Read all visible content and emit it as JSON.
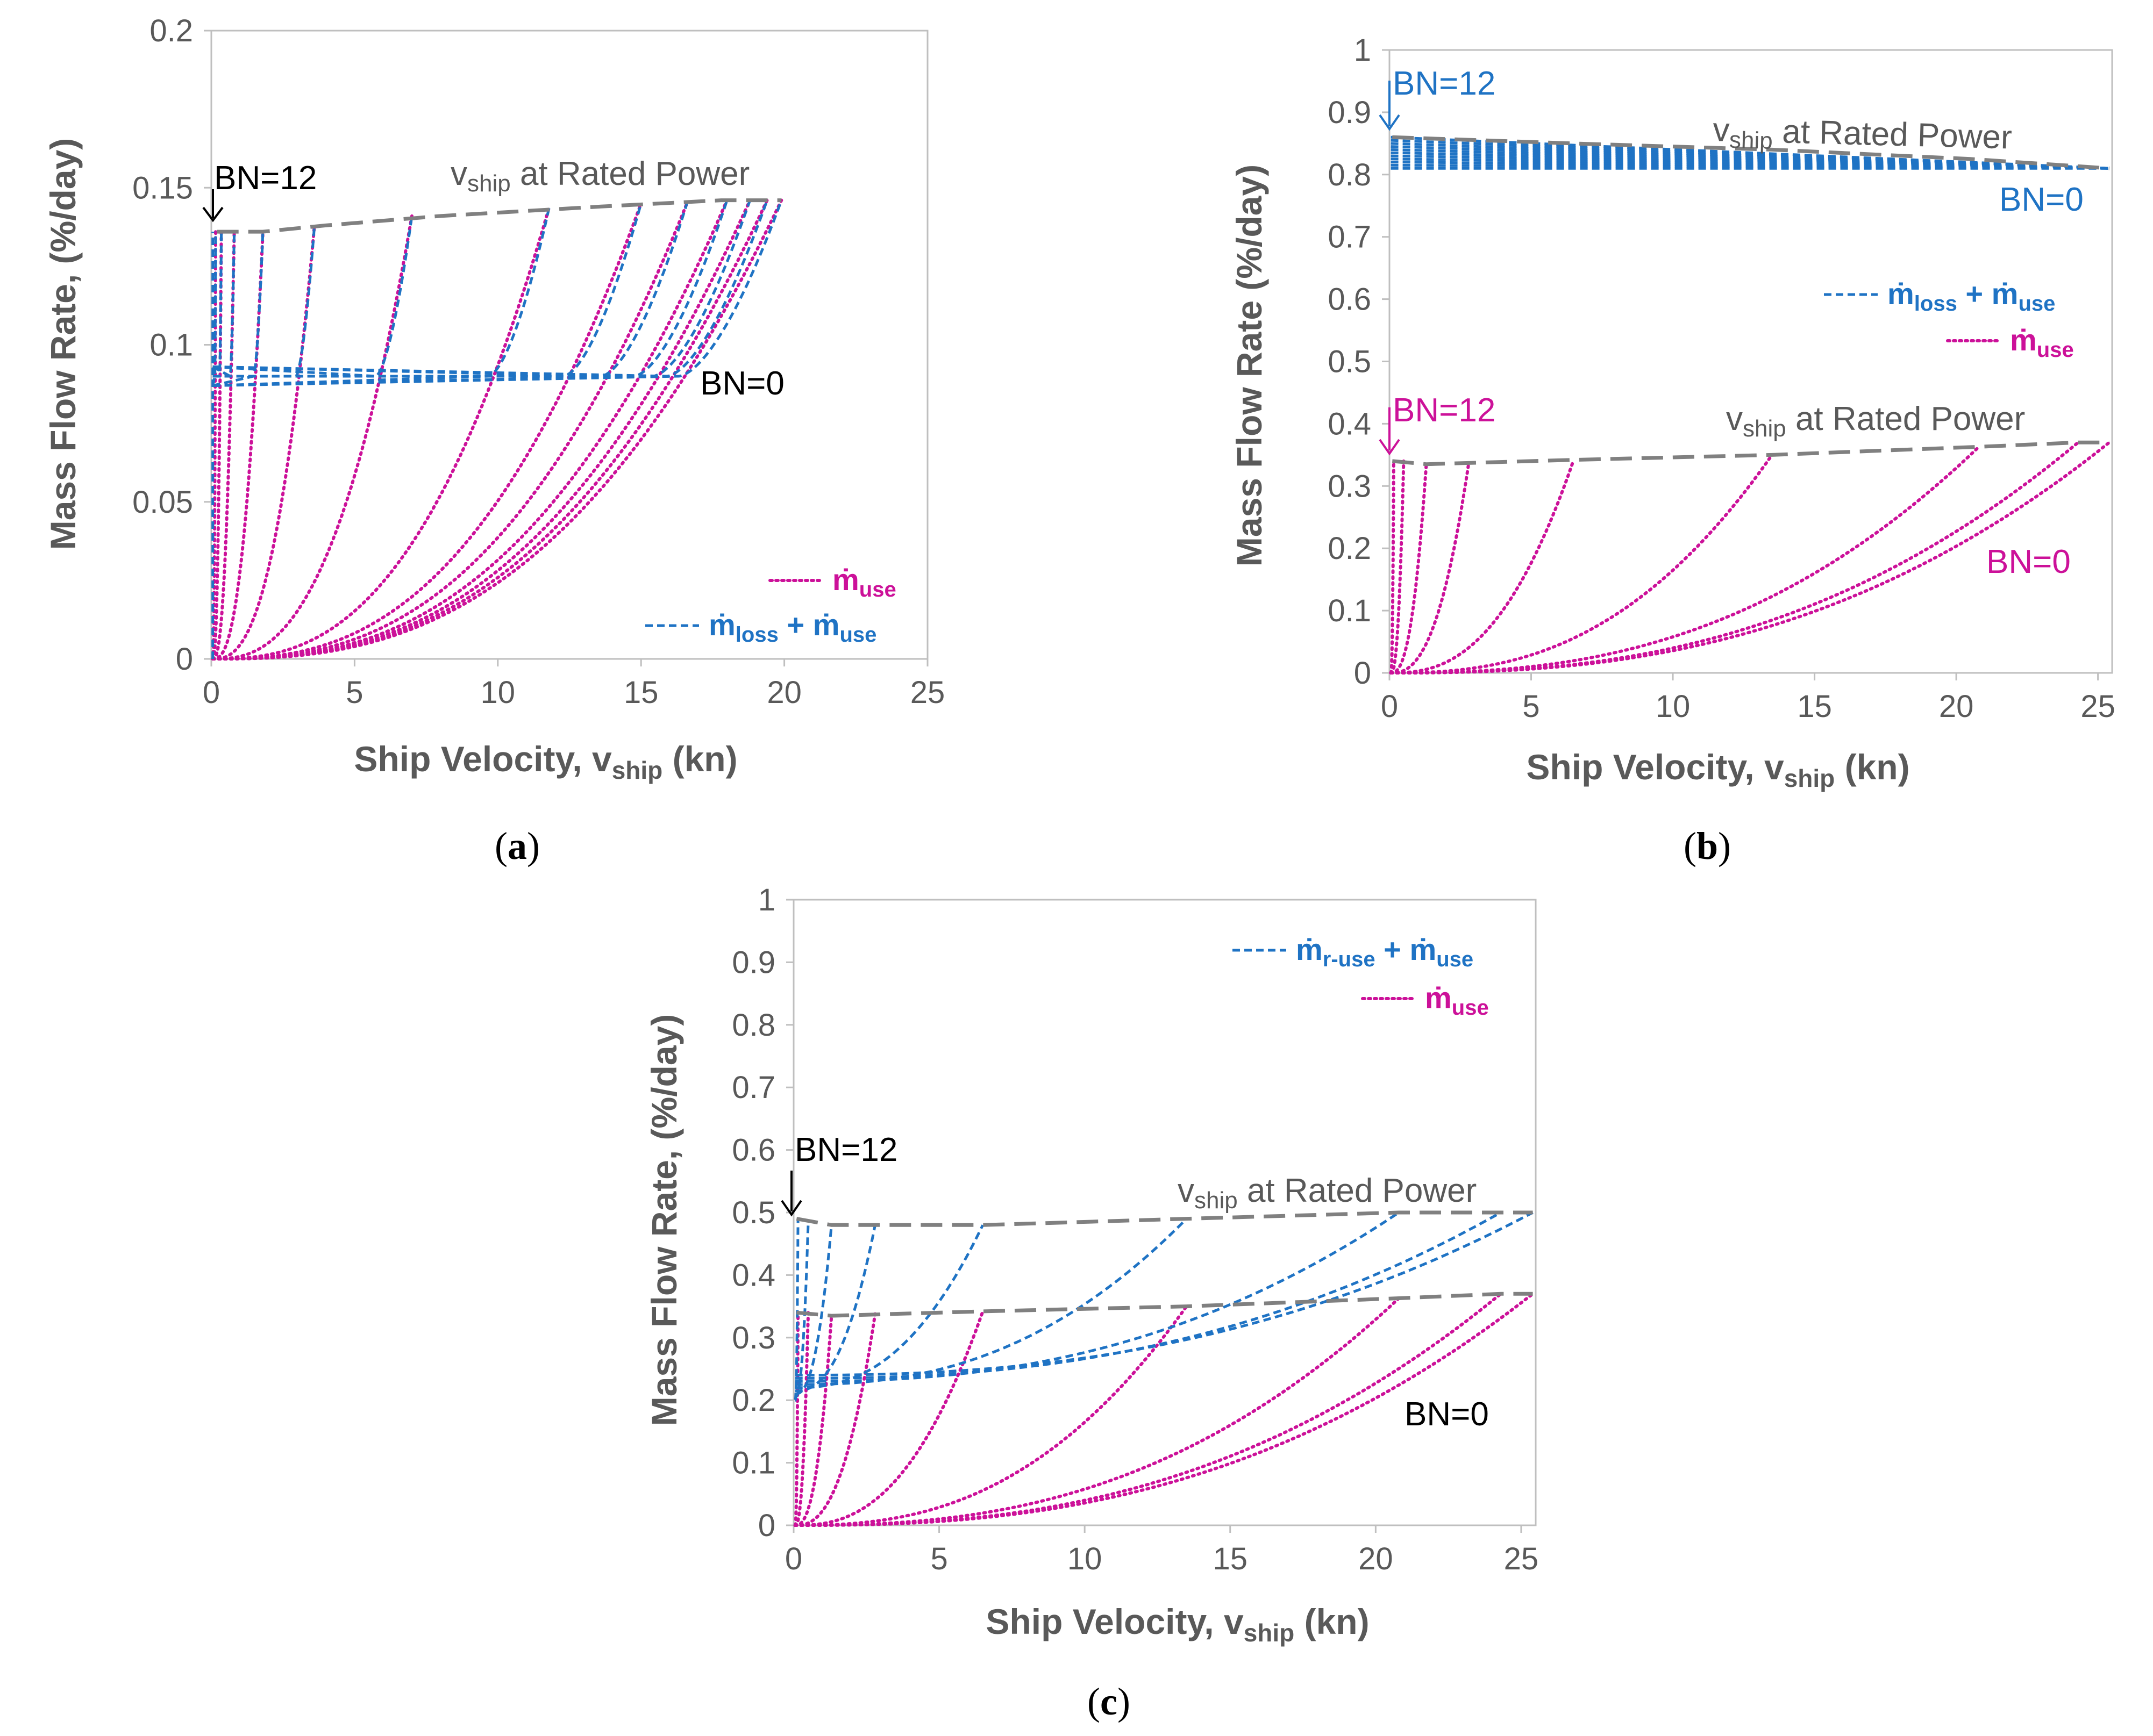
{
  "colors": {
    "blue": "#1f73c4",
    "magenta": "#cc1199",
    "gray": "#808080",
    "axis": "#bfbfbf",
    "black": "#000000"
  },
  "chart_data": [
    {
      "panel": "a",
      "panel_label": "a",
      "type": "line",
      "xlabel_main": "Ship Velocity, v",
      "xlabel_sub": "ship",
      "xlabel_tail": " (kn)",
      "ylabel": "Mass Flow Rate, (%/day)",
      "xlim": [
        0,
        25
      ],
      "ylim": [
        0,
        0.2
      ],
      "xticks": [
        0,
        5,
        10,
        15,
        20,
        25
      ],
      "yticks": [
        0,
        0.05,
        0.1,
        0.15,
        0.2
      ],
      "ytick_labels": [
        "0",
        "0.05",
        "0.1",
        "0.15",
        "0.2"
      ],
      "rated_lines": [
        {
          "name": "v_ship at Rated Power",
          "points": [
            [
              0.2,
              0.136
            ],
            [
              1.8,
              0.136
            ],
            [
              4,
              0.138
            ],
            [
              8,
              0.141
            ],
            [
              13.6,
              0.144
            ],
            [
              17.8,
              0.146
            ],
            [
              19.9,
              0.146
            ]
          ]
        }
      ],
      "series": [
        {
          "name": "m_use",
          "style": "use",
          "vmax": [
            0.15,
            0.35,
            0.8,
            1.8,
            3.6,
            7,
            11.8,
            15,
            16.6,
            18,
            18.8,
            19.4,
            19.9
          ],
          "endpoints": [
            0.136,
            0.136,
            0.136,
            0.136,
            0.138,
            0.141,
            0.144,
            0.145,
            0.145,
            0.146,
            0.146,
            0.146,
            0.146
          ],
          "exp": 2.6
        },
        {
          "name": "m_loss + m_use",
          "style": "loss",
          "vmax": [
            0.15,
            0.35,
            0.8,
            1.8,
            3.6,
            7,
            11.8,
            15,
            16.6,
            18,
            18.8,
            19.4,
            19.9
          ],
          "base": 0.09,
          "endpoints": [
            0.136,
            0.136,
            0.136,
            0.136,
            0.138,
            0.141,
            0.144,
            0.145,
            0.145,
            0.146,
            0.146,
            0.146,
            0.146
          ],
          "exp": 2.6
        }
      ],
      "annotations": {
        "rated_main": "v",
        "rated_sub": "ship",
        "rated_tail": " at Rated Power",
        "bn12": "BN=12",
        "bn0": "BN=0"
      },
      "legend": [
        {
          "label_base": "ṁ",
          "label_sub": "use",
          "style": "use"
        },
        {
          "label_base": "ṁ",
          "label_sub": "loss",
          "label_plus": " + ",
          "label_base2": "ṁ",
          "label_sub2": "use",
          "style": "loss"
        }
      ]
    },
    {
      "panel": "b",
      "panel_label": "b",
      "type": "line",
      "xlabel_main": "Ship Velocity, v",
      "xlabel_sub": "ship",
      "xlabel_tail": " (kn)",
      "ylabel": "Mass Flow Rate (%/day)",
      "xlim": [
        0,
        25.5
      ],
      "ylim": [
        0,
        1
      ],
      "xticks": [
        0,
        5,
        10,
        15,
        20,
        25
      ],
      "yticks": [
        0,
        0.1,
        0.2,
        0.3,
        0.4,
        0.5,
        0.6,
        0.7,
        0.8,
        0.9,
        1
      ],
      "ytick_labels": [
        "0",
        "0.1",
        "0.2",
        "0.3",
        "0.4",
        "0.5",
        "0.6",
        "0.7",
        "0.8",
        "0.9",
        "1"
      ],
      "rated_lines": [
        {
          "name": "v_ship at Rated Power (upper)",
          "points": [
            [
              0.1,
              0.86
            ],
            [
              6.5,
              0.85
            ],
            [
              13.5,
              0.84
            ],
            [
              20.5,
              0.825
            ],
            [
              25.4,
              0.81
            ]
          ]
        },
        {
          "name": "v_ship at Rated Power (lower)",
          "points": [
            [
              0.1,
              0.34
            ],
            [
              1.3,
              0.335
            ],
            [
              6.5,
              0.342
            ],
            [
              13.5,
              0.35
            ],
            [
              20.8,
              0.363
            ],
            [
              24.3,
              0.37
            ],
            [
              25.4,
              0.37
            ]
          ]
        }
      ],
      "series": [
        {
          "name": "m_use",
          "style": "use",
          "vmax": [
            0.15,
            0.5,
            1.3,
            2.8,
            6.5,
            13.5,
            20.8,
            24.3,
            25.4
          ],
          "endpoints": [
            0.34,
            0.34,
            0.335,
            0.338,
            0.342,
            0.35,
            0.363,
            0.37,
            0.37
          ],
          "exp": 2.5
        },
        {
          "name": "m_loss + m_use",
          "style": "loss-flat",
          "levels": [
            0.86,
            0.855,
            0.85,
            0.845,
            0.84,
            0.835,
            0.83,
            0.825,
            0.82,
            0.815,
            0.81
          ],
          "end": 0.81,
          "xend": 25.4
        }
      ],
      "annotations": {
        "rated_main": "v",
        "rated_sub": "ship",
        "rated_tail": " at Rated Power",
        "bn12_top": "BN=12",
        "bn0_top": "BN=0",
        "bn12_bottom": "BN=12",
        "bn0_bottom": "BN=0"
      },
      "legend": [
        {
          "label_base": "ṁ",
          "label_sub": "loss",
          "label_plus": " + ",
          "label_base2": "ṁ",
          "label_sub2": "use",
          "style": "loss"
        },
        {
          "label_base": "ṁ",
          "label_sub": "use",
          "style": "use"
        }
      ]
    },
    {
      "panel": "c",
      "panel_label": "c",
      "type": "line",
      "xlabel_main": "Ship Velocity, v",
      "xlabel_sub": "ship",
      "xlabel_tail": " (kn)",
      "ylabel": "Mass Flow Rate, (%/day)",
      "xlim": [
        0,
        25.5
      ],
      "ylim": [
        0,
        1
      ],
      "xticks": [
        0,
        5,
        10,
        15,
        20,
        25
      ],
      "yticks": [
        0,
        0.1,
        0.2,
        0.3,
        0.4,
        0.5,
        0.6,
        0.7,
        0.8,
        0.9,
        1
      ],
      "ytick_labels": [
        "0",
        "0.1",
        "0.2",
        "0.3",
        "0.4",
        "0.5",
        "0.6",
        "0.7",
        "0.8",
        "0.9",
        "1"
      ],
      "rated_lines": [
        {
          "name": "v_ship at Rated Power (upper)",
          "points": [
            [
              0.1,
              0.49
            ],
            [
              1.3,
              0.48
            ],
            [
              6.5,
              0.48
            ],
            [
              13.5,
              0.49
            ],
            [
              20.8,
              0.5
            ],
            [
              25.4,
              0.5
            ]
          ]
        },
        {
          "name": "v_ship at Rated Power (lower)",
          "points": [
            [
              0.1,
              0.34
            ],
            [
              1.3,
              0.335
            ],
            [
              6.5,
              0.342
            ],
            [
              13.5,
              0.35
            ],
            [
              20.8,
              0.363
            ],
            [
              24.3,
              0.37
            ],
            [
              25.4,
              0.37
            ]
          ]
        }
      ],
      "series": [
        {
          "name": "m_use",
          "style": "use",
          "vmax": [
            0.15,
            0.5,
            1.3,
            2.8,
            6.5,
            13.5,
            20.8,
            24.3,
            25.4
          ],
          "endpoints": [
            0.34,
            0.34,
            0.335,
            0.338,
            0.342,
            0.35,
            0.363,
            0.37,
            0.37
          ],
          "exp": 2.5
        },
        {
          "name": "m_r-use + m_use",
          "style": "ruse",
          "vmax": [
            0.15,
            0.5,
            1.3,
            2.8,
            6.5,
            13.5,
            20.8,
            24.3,
            25.4
          ],
          "endpoints": [
            0.49,
            0.485,
            0.48,
            0.48,
            0.48,
            0.49,
            0.5,
            0.5,
            0.5
          ],
          "base": 0.2,
          "exp": 2.4
        }
      ],
      "annotations": {
        "rated_main": "v",
        "rated_sub": "ship",
        "rated_tail": " at Rated Power",
        "bn12": "BN=12",
        "bn0": "BN=0"
      },
      "legend": [
        {
          "label_base": "ṁ",
          "label_sub": "r-use",
          "label_plus": " + ",
          "label_base2": "ṁ",
          "label_sub2": "use",
          "style": "loss"
        },
        {
          "label_base": "ṁ",
          "label_sub": "use",
          "style": "use"
        }
      ]
    }
  ]
}
